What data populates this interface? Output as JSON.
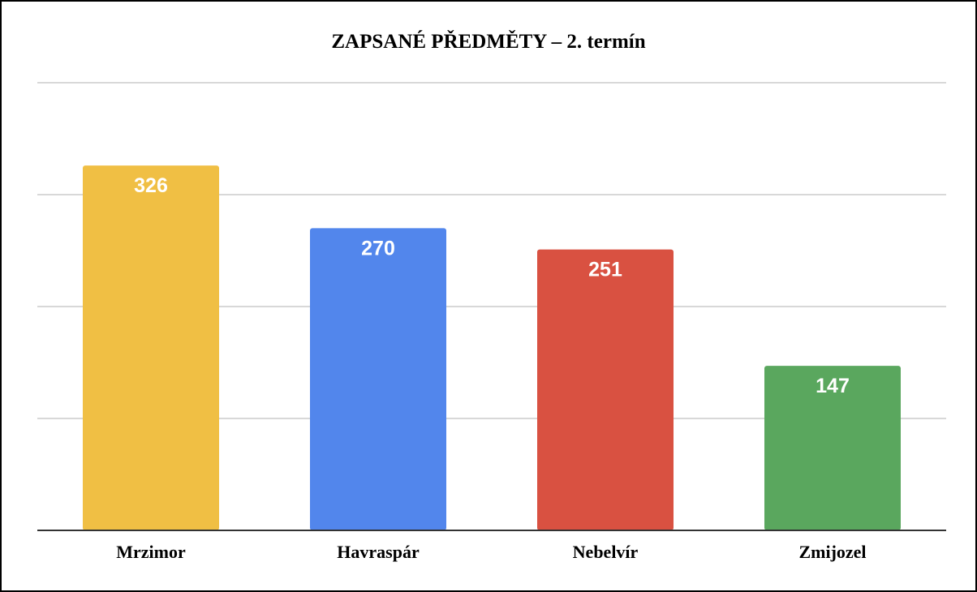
{
  "chart_data": {
    "type": "bar",
    "title": "ZAPSANÉ PŘEDMĚTY – 2. termín",
    "categories": [
      "Mrzimor",
      "Havraspár",
      "Nebelvír",
      "Zmijozel"
    ],
    "values": [
      326,
      270,
      251,
      147
    ],
    "colors": [
      "#F0BF44",
      "#5286EC",
      "#D95141",
      "#5AA75E"
    ],
    "ylim": [
      0,
      400
    ],
    "grid": true,
    "data_labels": true,
    "legend": "none"
  }
}
